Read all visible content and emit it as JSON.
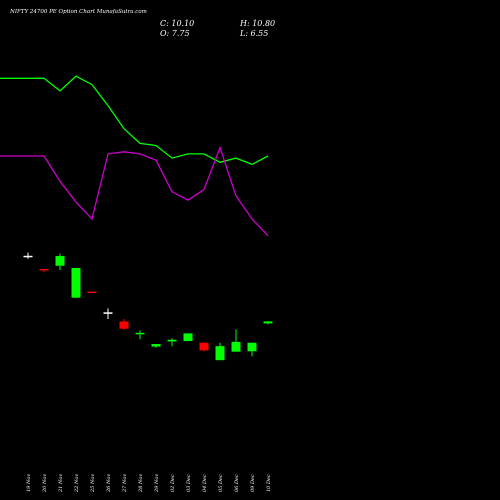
{
  "header": {
    "title": "NIFTY 24700  PE Option  Chart MunafaSutra.com",
    "close_label": "C: 10.10",
    "open_label": "O: 7.75",
    "high_label": "H: 10.80",
    "low_label": "L: 6.55"
  },
  "colors": {
    "background": "#000000",
    "up_candle": "#00ff00",
    "down_candle": "#ff0000",
    "doji": "#ffffff",
    "line_green": "#00ff00",
    "line_magenta": "#cc00cc"
  },
  "chart_data": {
    "type": "candlestick",
    "categories": [
      "19 Nov",
      "20 Nov",
      "21 Nov",
      "22 Nov",
      "25 Nov",
      "26 Nov",
      "27 Nov",
      "28 Nov",
      "29 Nov",
      "02 Dec",
      "03 Dec",
      "04 Dec",
      "05 Dec",
      "06 Dec",
      "09 Dec",
      "10 Dec"
    ],
    "candles": [
      {
        "date": "19 Nov",
        "open": 87.3,
        "high": 91.0,
        "low": 83.8,
        "close": 87.3
      },
      {
        "date": "20 Nov",
        "open": 71.8,
        "high": 71.8,
        "low": 68.0,
        "close": 70.0
      },
      {
        "date": "21 Nov",
        "open": 75.6,
        "high": 89.8,
        "low": 70.5,
        "close": 87.0
      },
      {
        "date": "22 Nov",
        "open": 38.0,
        "high": 73.0,
        "low": 37.8,
        "close": 73.0
      },
      {
        "date": "25 Nov",
        "open": 45.2,
        "high": 45.2,
        "low": 43.5,
        "close": 43.8
      },
      {
        "date": "26 Nov",
        "open": 20.8,
        "high": 25.5,
        "low": 13.0,
        "close": 20.8
      },
      {
        "date": "27 Nov",
        "open": 10.0,
        "high": 13.0,
        "low": 0.0,
        "close": 1.5
      },
      {
        "date": "28 Nov",
        "open": -5.0,
        "high": -0.5,
        "low": -11.0,
        "close": -3.3
      },
      {
        "date": "29 Nov",
        "open": -19.5,
        "high": -16.5,
        "low": -21.0,
        "close": -16.5
      },
      {
        "date": "02 Dec",
        "open": -13.5,
        "high": -9.7,
        "low": -19.0,
        "close": -11.5
      },
      {
        "date": "03 Dec",
        "open": -13.0,
        "high": -4.0,
        "low": -13.0,
        "close": -4.0
      },
      {
        "date": "04 Dec",
        "open": -15.0,
        "high": -15.0,
        "low": -25.0,
        "close": -24.0
      },
      {
        "date": "05 Dec",
        "open": -35.5,
        "high": -15.0,
        "low": -35.5,
        "close": -19.0
      },
      {
        "date": "06 Dec",
        "open": -25.5,
        "high": 0.8,
        "low": -25.5,
        "close": -14.0
      },
      {
        "date": "09 Dec",
        "open": -25.0,
        "high": -15.0,
        "low": -31.0,
        "close": -15.0
      },
      {
        "date": "10 Dec",
        "open": 7.75,
        "high": 10.8,
        "low": 6.55,
        "close": 10.1
      }
    ],
    "series": [
      {
        "values": [
          77,
          77,
          71,
          78,
          74,
          64,
          53,
          46,
          45,
          39,
          41,
          41,
          37,
          39,
          36,
          40
        ]
      },
      {
        "values": [
          40,
          40,
          28,
          18,
          10,
          41,
          42,
          41,
          38,
          23,
          19,
          24,
          44,
          21,
          10,
          2
        ]
      }
    ]
  }
}
